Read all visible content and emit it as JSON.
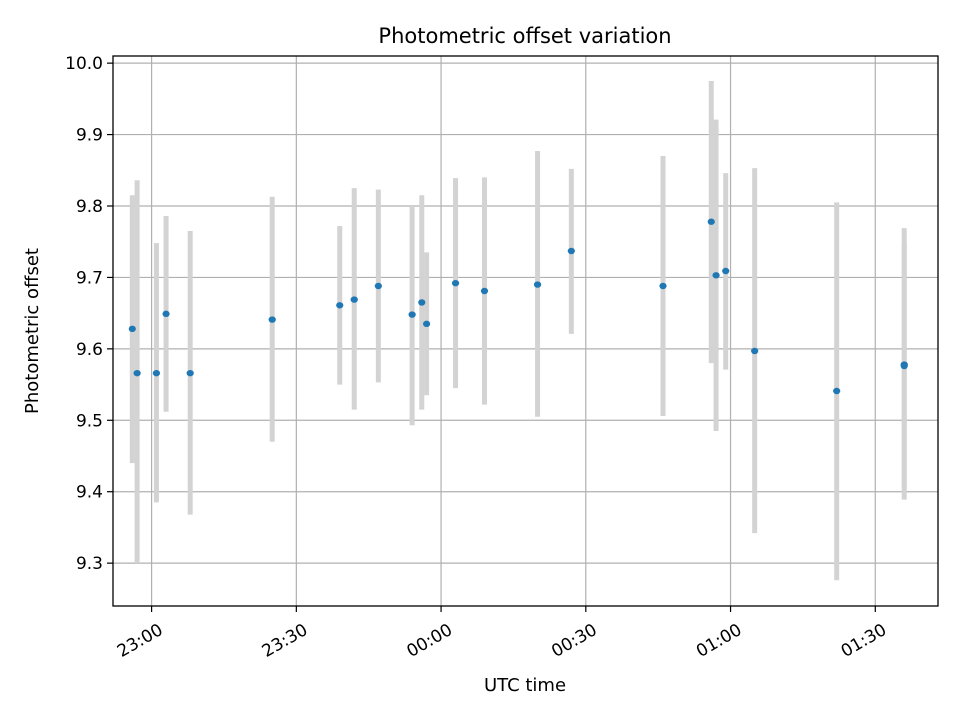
{
  "chart_data": {
    "type": "scatter",
    "title": "Photometric offset variation",
    "xlabel": "UTC time",
    "ylabel": "Photometric offset",
    "grid": true,
    "xlim": [
      "22:52",
      "01:43"
    ],
    "ylim": [
      9.24,
      10.01
    ],
    "x_ticks": [
      "23:00",
      "23:30",
      "00:00",
      "00:30",
      "01:00",
      "01:30"
    ],
    "y_ticks": [
      "9.3",
      "9.4",
      "9.5",
      "9.6",
      "9.7",
      "9.8",
      "9.9",
      "10.0"
    ],
    "colors": {
      "point": "#1f77b4",
      "errorbar": "#d3d3d3",
      "grid": "#b0b0b0"
    },
    "points": [
      {
        "x": "22:56",
        "y": 9.628,
        "ylow": 9.44,
        "yhigh": 9.815
      },
      {
        "x": "22:57",
        "y": 9.566,
        "ylow": 9.3,
        "yhigh": 9.836
      },
      {
        "x": "23:01",
        "y": 9.566,
        "ylow": 9.385,
        "yhigh": 9.748
      },
      {
        "x": "23:03",
        "y": 9.649,
        "ylow": 9.512,
        "yhigh": 9.786
      },
      {
        "x": "23:08",
        "y": 9.566,
        "ylow": 9.368,
        "yhigh": 9.765
      },
      {
        "x": "23:25",
        "y": 9.641,
        "ylow": 9.47,
        "yhigh": 9.813
      },
      {
        "x": "23:39",
        "y": 9.661,
        "ylow": 9.55,
        "yhigh": 9.772
      },
      {
        "x": "23:42",
        "y": 9.669,
        "ylow": 9.515,
        "yhigh": 9.825
      },
      {
        "x": "23:47",
        "y": 9.688,
        "ylow": 9.553,
        "yhigh": 9.823
      },
      {
        "x": "23:54",
        "y": 9.648,
        "ylow": 9.493,
        "yhigh": 9.8
      },
      {
        "x": "23:56",
        "y": 9.665,
        "ylow": 9.515,
        "yhigh": 9.815
      },
      {
        "x": "23:57",
        "y": 9.635,
        "ylow": 9.535,
        "yhigh": 9.735
      },
      {
        "x": "00:03",
        "y": 9.692,
        "ylow": 9.545,
        "yhigh": 9.839
      },
      {
        "x": "00:09",
        "y": 9.681,
        "ylow": 9.522,
        "yhigh": 9.84
      },
      {
        "x": "00:20",
        "y": 9.69,
        "ylow": 9.505,
        "yhigh": 9.877
      },
      {
        "x": "00:27",
        "y": 9.737,
        "ylow": 9.621,
        "yhigh": 9.852
      },
      {
        "x": "00:46",
        "y": 9.688,
        "ylow": 9.506,
        "yhigh": 9.87
      },
      {
        "x": "00:56",
        "y": 9.778,
        "ylow": 9.58,
        "yhigh": 9.975
      },
      {
        "x": "00:57",
        "y": 9.703,
        "ylow": 9.485,
        "yhigh": 9.921
      },
      {
        "x": "00:59",
        "y": 9.709,
        "ylow": 9.571,
        "yhigh": 9.846
      },
      {
        "x": "01:05",
        "y": 9.597,
        "ylow": 9.342,
        "yhigh": 9.853
      },
      {
        "x": "01:22",
        "y": 9.541,
        "ylow": 9.276,
        "yhigh": 9.805
      },
      {
        "x": "01:36",
        "y": 9.578,
        "ylow": 9.389,
        "yhigh": 9.769
      },
      {
        "x": "01:36",
        "y": 9.576,
        "ylow": 9.405,
        "yhigh": 9.746
      }
    ]
  }
}
